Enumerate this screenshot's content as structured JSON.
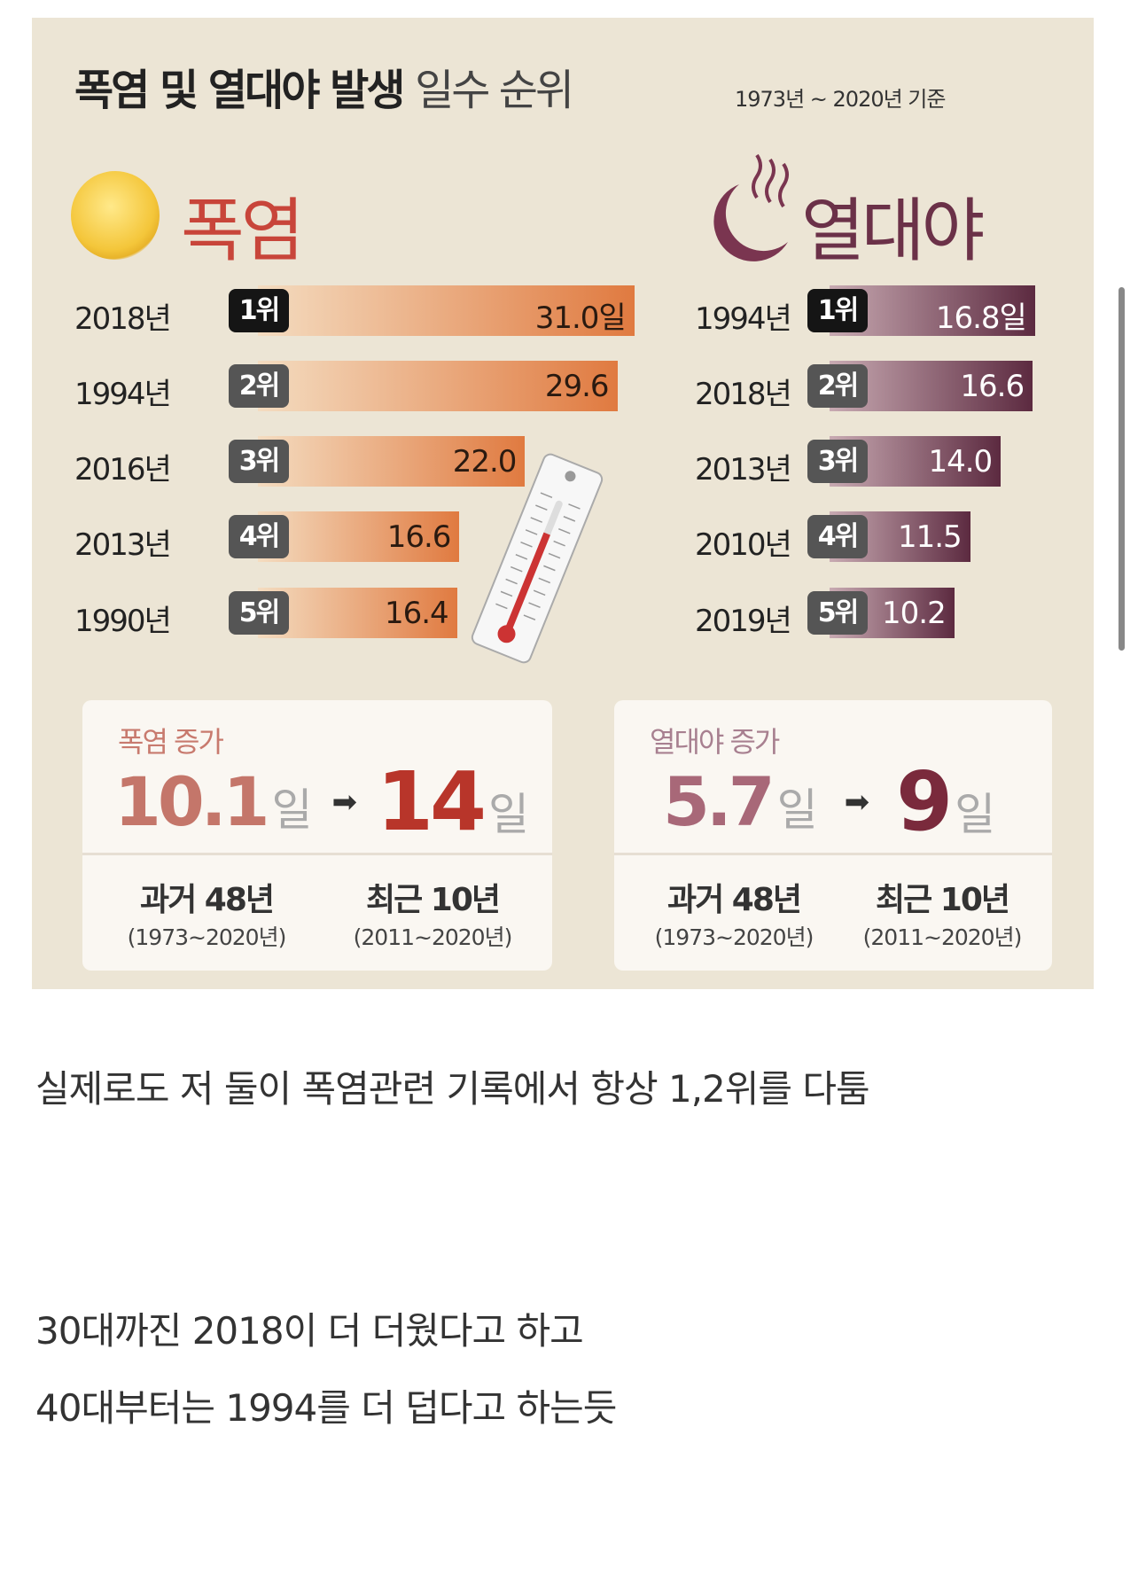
{
  "infographic": {
    "title_bold": "폭염 및 열대야 발생",
    "title_light": "일수 순위",
    "basis": "1973년 ~ 2020년 기준",
    "heatwave": {
      "heading": "폭염",
      "rows": [
        {
          "year": "2018년",
          "rank": "1위",
          "value": 31.0,
          "label": "31.0일"
        },
        {
          "year": "1994년",
          "rank": "2위",
          "value": 29.6,
          "label": "29.6"
        },
        {
          "year": "2016년",
          "rank": "3위",
          "value": 22.0,
          "label": "22.0"
        },
        {
          "year": "2013년",
          "rank": "4위",
          "value": 16.6,
          "label": "16.6"
        },
        {
          "year": "1990년",
          "rank": "5위",
          "value": 16.4,
          "label": "16.4"
        }
      ],
      "increase": {
        "label": "폭염 증가",
        "from": "10.1",
        "to": "14",
        "unit": "일",
        "arrow": "➡",
        "past": "과거 48년",
        "past_range": "(1973~2020년)",
        "recent": "최근 10년",
        "recent_range": "(2011~2020년)"
      }
    },
    "tropical_night": {
      "heading": "열대야",
      "rows": [
        {
          "year": "1994년",
          "rank": "1위",
          "value": 16.8,
          "label": "16.8일"
        },
        {
          "year": "2018년",
          "rank": "2위",
          "value": 16.6,
          "label": "16.6"
        },
        {
          "year": "2013년",
          "rank": "3위",
          "value": 14.0,
          "label": "14.0"
        },
        {
          "year": "2010년",
          "rank": "4위",
          "value": 11.5,
          "label": "11.5"
        },
        {
          "year": "2019년",
          "rank": "5위",
          "value": 10.2,
          "label": "10.2"
        }
      ],
      "increase": {
        "label": "열대야 증가",
        "from": "5.7",
        "to": "9",
        "unit": "일",
        "arrow": "➡",
        "past": "과거 48년",
        "past_range": "(1973~2020년)",
        "recent": "최근 10년",
        "recent_range": "(2011~2020년)"
      }
    },
    "colors": {
      "heat": "#e07a40",
      "night": "#5c2a40",
      "bg": "#ece5d5"
    }
  },
  "chart_data": [
    {
      "type": "bar",
      "title": "폭염",
      "categories": [
        "2018년",
        "1994년",
        "2016년",
        "2013년",
        "1990년"
      ],
      "values": [
        31.0,
        29.6,
        22.0,
        16.6,
        16.4
      ],
      "xlabel": "",
      "ylabel": "일"
    },
    {
      "type": "bar",
      "title": "열대야",
      "categories": [
        "1994년",
        "2018년",
        "2013년",
        "2010년",
        "2019년"
      ],
      "values": [
        16.8,
        16.6,
        14.0,
        11.5,
        10.2
      ],
      "xlabel": "",
      "ylabel": "일"
    }
  ],
  "post": {
    "line1": "실제로도 저 둘이 폭염관련 기록에서 항상 1,2위를 다툼",
    "line2": "30대까진 2018이 더 더웠다고 하고",
    "line3": "40대부터는 1994를 더 덥다고 하는듯"
  }
}
